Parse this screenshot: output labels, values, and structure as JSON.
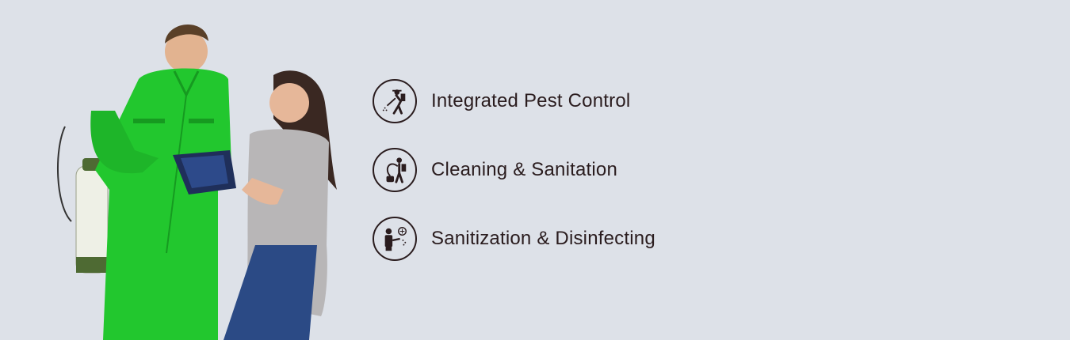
{
  "services": [
    {
      "label": "Integrated Pest Control",
      "icon": "pest-sprayer-icon"
    },
    {
      "label": "Cleaning & Sanitation",
      "icon": "vacuum-cleaning-icon"
    },
    {
      "label": "Sanitization & Disinfecting",
      "icon": "disinfecting-sprayer-icon"
    }
  ],
  "colors": {
    "background": "#dde1e8",
    "text": "#2a1c1e",
    "uniform_green": "#22c72e"
  }
}
